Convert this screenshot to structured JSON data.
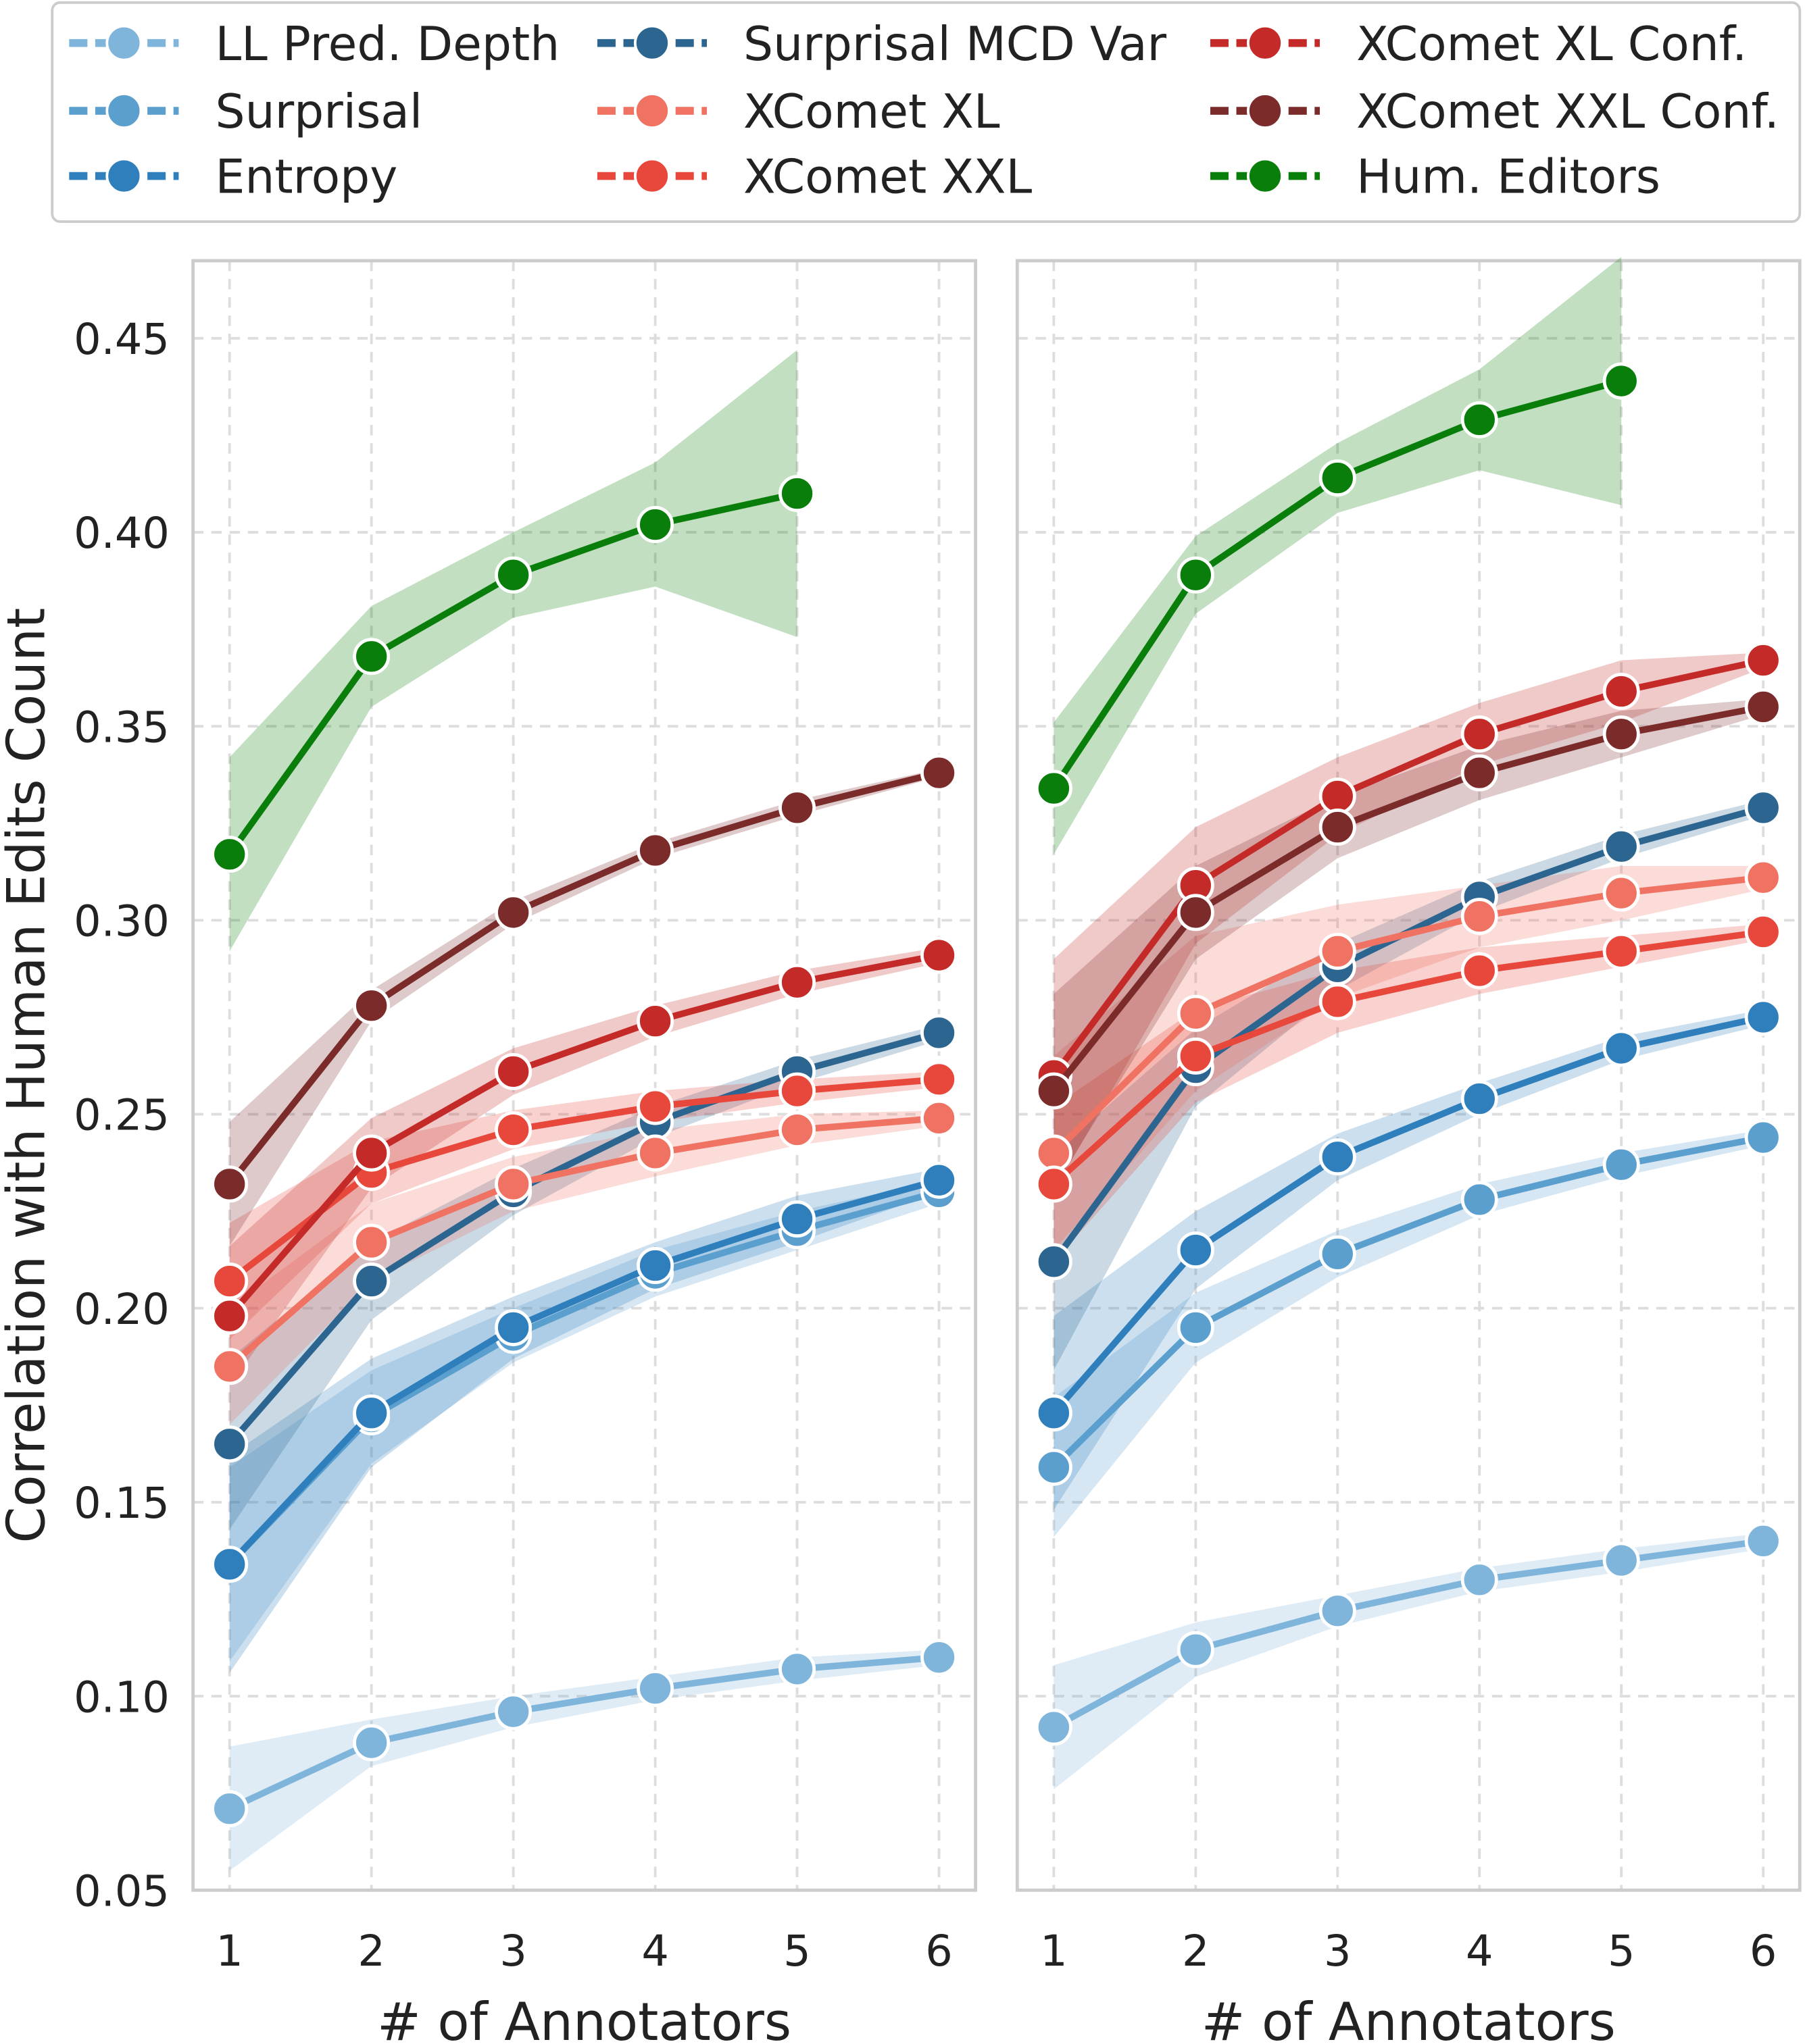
{
  "chart_data": {
    "type": "line",
    "legend": {
      "placement": "top",
      "entries": [
        "LL Pred. Depth",
        "Surprisal",
        "Entropy",
        "Surprisal MCD Var",
        "XComet XL",
        "XComet XXL",
        "XComet XL Conf.",
        "XComet XXL Conf.",
        "Hum. Editors"
      ]
    },
    "ylabel": "Correlation with Human Edits Count",
    "ylim": [
      0.05,
      0.47
    ],
    "yticks": [
      "0.05",
      "0.10",
      "0.15",
      "0.20",
      "0.25",
      "0.30",
      "0.35",
      "0.40",
      "0.45"
    ],
    "grid": true,
    "colors": {
      "LL Pred. Depth": "#7fb5da",
      "Surprisal": "#5b9fcf",
      "Entropy": "#2f7fbd",
      "Surprisal MCD Var": "#2c6690",
      "XComet XL": "#f07262",
      "XComet XXL": "#e8473b",
      "XComet XL Conf.": "#c42a28",
      "XComet XXL Conf.": "#7b2b2a",
      "Hum. Editors": "#0a7e0a"
    },
    "panels": [
      {
        "xlabel": "# of Annotators",
        "x": [
          1,
          2,
          3,
          4,
          5,
          6
        ],
        "xticks": [
          "1",
          "2",
          "3",
          "4",
          "5",
          "6"
        ],
        "series": [
          {
            "name": "LL Pred. Depth",
            "values": [
              0.071,
              0.088,
              0.096,
              0.102,
              0.107,
              0.11
            ],
            "ci": [
              0.016,
              0.006,
              0.004,
              0.003,
              0.003,
              0.002
            ]
          },
          {
            "name": "Surprisal",
            "values": [
              0.134,
              0.172,
              0.193,
              0.209,
              0.22,
              0.23
            ],
            "ci": [
              0.025,
              0.012,
              0.007,
              0.006,
              0.005,
              0.003
            ]
          },
          {
            "name": "Entropy",
            "values": [
              0.134,
              0.173,
              0.195,
              0.211,
              0.223,
              0.233
            ],
            "ci": [
              0.028,
              0.014,
              0.008,
              0.006,
              0.006,
              0.003
            ]
          },
          {
            "name": "Surprisal MCD Var",
            "values": [
              0.165,
              0.207,
              0.23,
              0.248,
              0.261,
              0.271
            ],
            "ci": [
              0.022,
              0.01,
              0.006,
              0.004,
              0.003,
              0.002
            ]
          },
          {
            "name": "XComet XL",
            "values": [
              0.185,
              0.217,
              0.232,
              0.24,
              0.246,
              0.249
            ],
            "ci": [
              0.015,
              0.01,
              0.007,
              0.006,
              0.004,
              0.002
            ]
          },
          {
            "name": "XComet XXL",
            "values": [
              0.207,
              0.235,
              0.246,
              0.252,
              0.256,
              0.259
            ],
            "ci": [
              0.015,
              0.008,
              0.005,
              0.004,
              0.003,
              0.002
            ]
          },
          {
            "name": "XComet XL Conf.",
            "values": [
              0.198,
              0.24,
              0.261,
              0.274,
              0.284,
              0.291
            ],
            "ci": [
              0.018,
              0.009,
              0.006,
              0.004,
              0.003,
              0.002
            ]
          },
          {
            "name": "XComet XXL Conf.",
            "values": [
              0.232,
              0.278,
              0.302,
              0.318,
              0.329,
              0.338
            ],
            "ci": [
              0.016,
              0.004,
              0.003,
              0.002,
              0.002,
              0.001
            ]
          },
          {
            "name": "Hum. Editors",
            "values": [
              0.317,
              0.368,
              0.389,
              0.402,
              0.41,
              null
            ],
            "ci": [
              0.025,
              0.013,
              0.011,
              0.016,
              0.037,
              null
            ]
          }
        ]
      },
      {
        "xlabel": "# of Annotators",
        "x": [
          1,
          2,
          3,
          4,
          5,
          6
        ],
        "xticks": [
          "1",
          "2",
          "3",
          "4",
          "5",
          "6"
        ],
        "series": [
          {
            "name": "LL Pred. Depth",
            "values": [
              0.092,
              0.112,
              0.122,
              0.13,
              0.135,
              0.14
            ],
            "ci": [
              0.016,
              0.007,
              0.004,
              0.003,
              0.003,
              0.002
            ]
          },
          {
            "name": "Surprisal",
            "values": [
              0.159,
              0.195,
              0.214,
              0.228,
              0.237,
              0.244
            ],
            "ci": [
              0.018,
              0.009,
              0.006,
              0.004,
              0.003,
              0.002
            ]
          },
          {
            "name": "Entropy",
            "values": [
              0.173,
              0.215,
              0.239,
              0.254,
              0.267,
              0.275
            ],
            "ci": [
              0.025,
              0.01,
              0.006,
              0.004,
              0.003,
              0.002
            ]
          },
          {
            "name": "Surprisal MCD Var",
            "values": [
              0.212,
              0.262,
              0.288,
              0.306,
              0.319,
              0.329
            ],
            "ci": [
              0.028,
              0.01,
              0.006,
              0.004,
              0.003,
              0.002
            ]
          },
          {
            "name": "XComet XL",
            "values": [
              0.24,
              0.276,
              0.292,
              0.301,
              0.307,
              0.311
            ],
            "ci": [
              0.025,
              0.02,
              0.012,
              0.008,
              0.007,
              0.003
            ]
          },
          {
            "name": "XComet XXL",
            "values": [
              0.232,
              0.265,
              0.279,
              0.287,
              0.292,
              0.297
            ],
            "ci": [
              0.02,
              0.012,
              0.008,
              0.006,
              0.004,
              0.002
            ]
          },
          {
            "name": "XComet XL Conf.",
            "values": [
              0.26,
              0.309,
              0.332,
              0.348,
              0.359,
              0.367
            ],
            "ci": [
              0.03,
              0.015,
              0.01,
              0.008,
              0.008,
              0.002
            ]
          },
          {
            "name": "XComet XXL Conf.",
            "values": [
              0.256,
              0.302,
              0.324,
              0.338,
              0.348,
              0.355
            ],
            "ci": [
              0.025,
              0.012,
              0.008,
              0.007,
              0.006,
              0.002
            ]
          },
          {
            "name": "Hum. Editors",
            "values": [
              0.334,
              0.389,
              0.414,
              0.429,
              0.439,
              null
            ],
            "ci": [
              0.017,
              0.01,
              0.009,
              0.013,
              0.032,
              null
            ]
          }
        ]
      }
    ]
  }
}
